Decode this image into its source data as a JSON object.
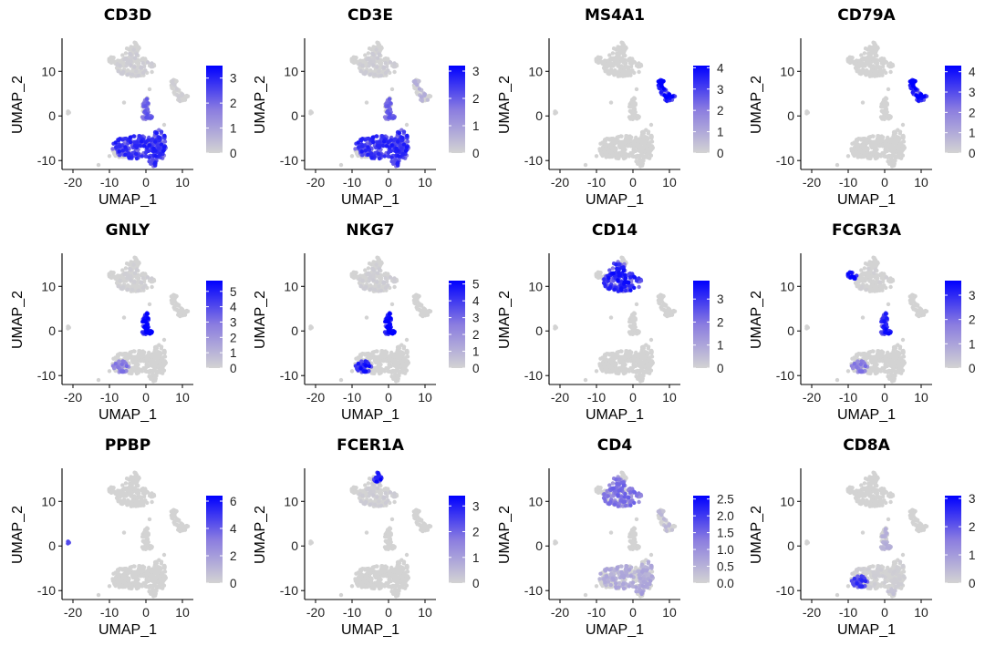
{
  "figure": {
    "type": "umap-feature-plot-grid",
    "low_color": "#d3d3d3",
    "high_color": "#0000ff"
  },
  "chart_data": [
    {
      "type": "scatter",
      "title": "CD3D",
      "xlabel": "UMAP_1",
      "ylabel": "UMAP_2",
      "xticks": [
        -20,
        -10,
        0,
        10
      ],
      "yticks": [
        -10,
        0,
        10
      ],
      "xlim": [
        -23,
        13
      ],
      "ylim": [
        -12,
        17
      ],
      "legend_range": [
        0,
        3.5
      ],
      "legend_ticks": [
        "0",
        "1",
        "2",
        "3"
      ],
      "legend_values": [
        0,
        1,
        2,
        3
      ],
      "expression_by_cluster": {
        "tcell_main": 0.8,
        "tcell_right": 0.8,
        "nk": 0.6,
        "mono": 0.05,
        "bcell": 0.03,
        "platelet": 0
      }
    },
    {
      "type": "scatter",
      "title": "CD3E",
      "xlabel": "UMAP_1",
      "ylabel": "UMAP_2",
      "xticks": [
        -20,
        -10,
        0,
        10
      ],
      "yticks": [
        -10,
        0,
        10
      ],
      "xlim": [
        -23,
        13
      ],
      "ylim": [
        -12,
        17
      ],
      "legend_range": [
        0,
        3.2
      ],
      "legend_ticks": [
        "0",
        "1",
        "2",
        "3"
      ],
      "legend_values": [
        0,
        1,
        2,
        3
      ],
      "expression_by_cluster": {
        "tcell_main": 0.8,
        "tcell_right": 0.8,
        "nk": 0.6,
        "mono": 0.05,
        "bcell": 0.2,
        "platelet": 0
      }
    },
    {
      "type": "scatter",
      "title": "MS4A1",
      "xlabel": "UMAP_1",
      "ylabel": "UMAP_2",
      "xticks": [
        -20,
        -10,
        0,
        10
      ],
      "yticks": [
        -10,
        0,
        10
      ],
      "xlim": [
        -23,
        13
      ],
      "ylim": [
        -12,
        17
      ],
      "legend_range": [
        0,
        4.1
      ],
      "legend_ticks": [
        "0",
        "1",
        "2",
        "3",
        "4"
      ],
      "legend_values": [
        0,
        1,
        2,
        3,
        4
      ],
      "expression_by_cluster": {
        "tcell_main": 0,
        "tcell_right": 0,
        "nk": 0,
        "mono": 0,
        "bcell": 1.0,
        "platelet": 0
      }
    },
    {
      "type": "scatter",
      "title": "CD79A",
      "xlabel": "UMAP_1",
      "ylabel": "UMAP_2",
      "xticks": [
        -20,
        -10,
        0,
        10
      ],
      "yticks": [
        -10,
        0,
        10
      ],
      "xlim": [
        -23,
        13
      ],
      "ylim": [
        -12,
        17
      ],
      "legend_range": [
        0,
        4.3
      ],
      "legend_ticks": [
        "0",
        "1",
        "2",
        "3",
        "4"
      ],
      "legend_values": [
        0,
        1,
        2,
        3,
        4
      ],
      "expression_by_cluster": {
        "tcell_main": 0,
        "tcell_right": 0,
        "nk": 0,
        "mono": 0,
        "bcell": 1.0,
        "platelet": 0
      }
    },
    {
      "type": "scatter",
      "title": "GNLY",
      "xlabel": "UMAP_1",
      "ylabel": "UMAP_2",
      "xticks": [
        -20,
        -10,
        0,
        10
      ],
      "yticks": [
        -10,
        0,
        10
      ],
      "xlim": [
        -23,
        13
      ],
      "ylim": [
        -12,
        17
      ],
      "legend_range": [
        0,
        5.7
      ],
      "legend_ticks": [
        "0",
        "1",
        "2",
        "3",
        "4",
        "5"
      ],
      "legend_values": [
        0,
        1,
        2,
        3,
        4,
        5
      ],
      "expression_by_cluster": {
        "tcell_main": 0,
        "tcell_right": 0,
        "nk": 1.0,
        "mono": 0.03,
        "bcell": 0,
        "platelet": 0,
        "cd8_left": 0.5
      }
    },
    {
      "type": "scatter",
      "title": "NKG7",
      "xlabel": "UMAP_1",
      "ylabel": "UMAP_2",
      "xticks": [
        -20,
        -10,
        0,
        10
      ],
      "yticks": [
        -10,
        0,
        10
      ],
      "xlim": [
        -23,
        13
      ],
      "ylim": [
        -12,
        17
      ],
      "legend_range": [
        0,
        5.2
      ],
      "legend_ticks": [
        "0",
        "1",
        "2",
        "3",
        "4",
        "5"
      ],
      "legend_values": [
        0,
        1,
        2,
        3,
        4,
        5
      ],
      "expression_by_cluster": {
        "tcell_main": 0,
        "tcell_right": 0,
        "nk": 1.0,
        "mono": 0.04,
        "bcell": 0,
        "platelet": 0,
        "cd8_left": 0.85
      }
    },
    {
      "type": "scatter",
      "title": "CD14",
      "xlabel": "UMAP_1",
      "ylabel": "UMAP_2",
      "xticks": [
        -20,
        -10,
        0,
        10
      ],
      "yticks": [
        -10,
        0,
        10
      ],
      "xlim": [
        -23,
        13
      ],
      "ylim": [
        -12,
        17
      ],
      "legend_range": [
        0,
        3.8
      ],
      "legend_ticks": [
        "0",
        "1",
        "2",
        "3"
      ],
      "legend_values": [
        0,
        1,
        2,
        3
      ],
      "expression_by_cluster": {
        "tcell_main": 0,
        "tcell_right": 0,
        "nk": 0,
        "mono": 0.85,
        "bcell": 0,
        "platelet": 0
      }
    },
    {
      "type": "scatter",
      "title": "FCGR3A",
      "xlabel": "UMAP_1",
      "ylabel": "UMAP_2",
      "xticks": [
        -20,
        -10,
        0,
        10
      ],
      "yticks": [
        -10,
        0,
        10
      ],
      "xlim": [
        -23,
        13
      ],
      "ylim": [
        -12,
        17
      ],
      "legend_range": [
        0,
        3.6
      ],
      "legend_ticks": [
        "0",
        "1",
        "2",
        "3"
      ],
      "legend_values": [
        0,
        1,
        2,
        3
      ],
      "expression_by_cluster": {
        "tcell_main": 0,
        "tcell_right": 0,
        "nk": 0.85,
        "mono": 0.02,
        "bcell": 0,
        "platelet": 0,
        "cd16_mono": 0.9,
        "cd8_left": 0.5
      }
    },
    {
      "type": "scatter",
      "title": "PPBP",
      "xlabel": "UMAP_1",
      "ylabel": "UMAP_2",
      "xticks": [
        -20,
        -10,
        0,
        10
      ],
      "yticks": [
        -10,
        0,
        10
      ],
      "xlim": [
        -23,
        13
      ],
      "ylim": [
        -12,
        17
      ],
      "legend_range": [
        0,
        6.4
      ],
      "legend_ticks": [
        "0",
        "2",
        "4",
        "6"
      ],
      "legend_values": [
        0,
        2,
        4,
        6
      ],
      "expression_by_cluster": {
        "tcell_main": 0,
        "tcell_right": 0,
        "nk": 0,
        "mono": 0,
        "bcell": 0,
        "platelet": 1.0
      }
    },
    {
      "type": "scatter",
      "title": "FCER1A",
      "xlabel": "UMAP_1",
      "ylabel": "UMAP_2",
      "xticks": [
        -20,
        -10,
        0,
        10
      ],
      "yticks": [
        -10,
        0,
        10
      ],
      "xlim": [
        -23,
        13
      ],
      "ylim": [
        -12,
        17
      ],
      "legend_range": [
        0,
        3.4
      ],
      "legend_ticks": [
        "0",
        "1",
        "2",
        "3"
      ],
      "legend_values": [
        0,
        1,
        2,
        3
      ],
      "expression_by_cluster": {
        "tcell_main": 0,
        "tcell_right": 0,
        "nk": 0,
        "mono": 0.05,
        "bcell": 0,
        "platelet": 0,
        "dc": 0.9
      }
    },
    {
      "type": "scatter",
      "title": "CD4",
      "xlabel": "UMAP_1",
      "ylabel": "UMAP_2",
      "xticks": [
        -20,
        -10,
        0,
        10
      ],
      "yticks": [
        -10,
        0,
        10
      ],
      "xlim": [
        -23,
        13
      ],
      "ylim": [
        -12,
        17
      ],
      "legend_range": [
        0,
        2.6
      ],
      "legend_ticks": [
        "0.0",
        "0.5",
        "1.0",
        "1.5",
        "2.0",
        "2.5"
      ],
      "legend_values": [
        0,
        0.5,
        1,
        1.5,
        2,
        2.5
      ],
      "expression_by_cluster": {
        "tcell_main": 0.25,
        "tcell_right": 0.3,
        "nk": 0,
        "mono": 0.55,
        "bcell": 0.15,
        "platelet": 0
      }
    },
    {
      "type": "scatter",
      "title": "CD8A",
      "xlabel": "UMAP_1",
      "ylabel": "UMAP_2",
      "xticks": [
        -20,
        -10,
        0,
        10
      ],
      "yticks": [
        -10,
        0,
        10
      ],
      "xlim": [
        -23,
        13
      ],
      "ylim": [
        -12,
        17
      ],
      "legend_range": [
        0,
        3.1
      ],
      "legend_ticks": [
        "0",
        "1",
        "2",
        "3"
      ],
      "legend_values": [
        0,
        1,
        2,
        3
      ],
      "expression_by_cluster": {
        "tcell_main": 0.03,
        "tcell_right": 0.1,
        "nk": 0.2,
        "mono": 0,
        "bcell": 0,
        "platelet": 0,
        "cd8_left": 0.75
      }
    }
  ]
}
